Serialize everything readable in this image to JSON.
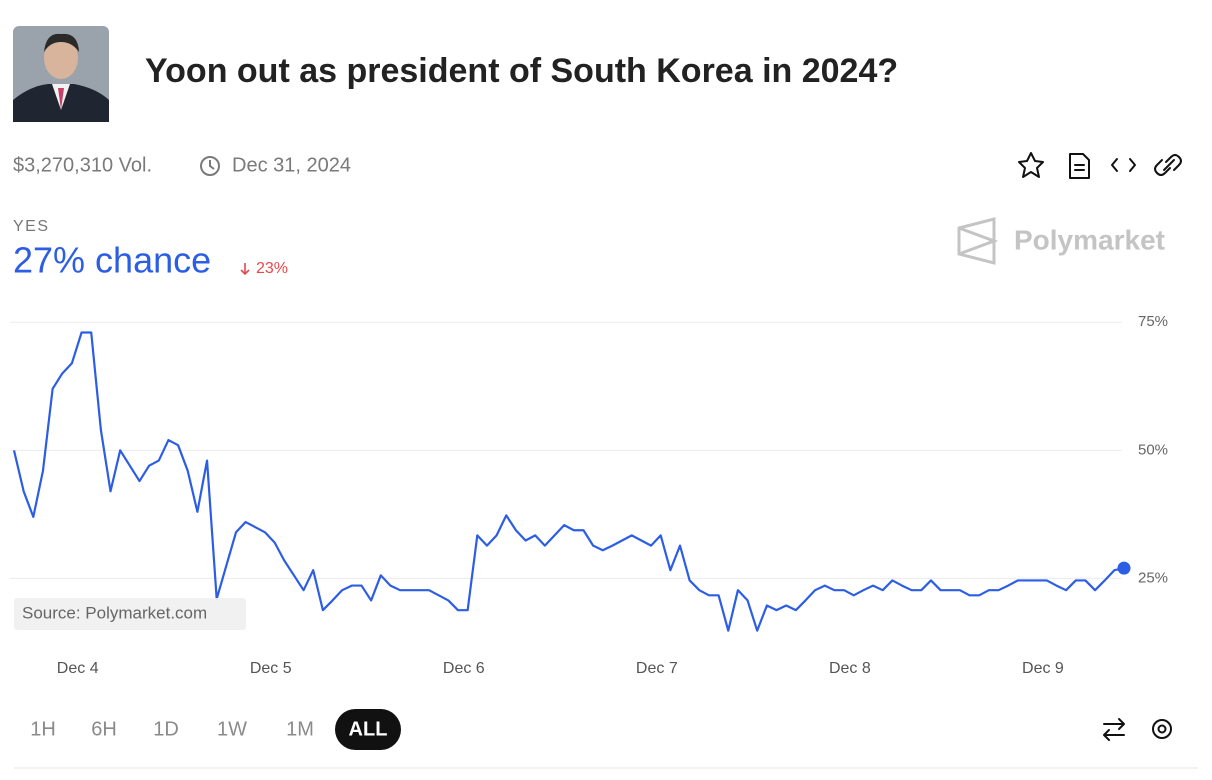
{
  "header": {
    "title": "Yoon out as president of South Korea in 2024?",
    "volume": "$3,270,310 Vol.",
    "end_date": "Dec 31, 2024"
  },
  "outcome": {
    "label": "YES",
    "chance": "27% chance",
    "change": "23%"
  },
  "brand": "Polymarket",
  "source": "Source: Polymarket.com",
  "timeframes": [
    "1H",
    "6H",
    "1D",
    "1W",
    "1M",
    "ALL"
  ],
  "active_timeframe": 5,
  "chart_data": {
    "type": "line",
    "color": "#2c5de5",
    "grid": true,
    "xlim": [
      0,
      115
    ],
    "ylim": [
      12,
      77
    ],
    "xticks": [
      {
        "value": 6.6,
        "label": "Dec 4"
      },
      {
        "value": 26.6,
        "label": "Dec 5"
      },
      {
        "value": 46.6,
        "label": "Dec 6"
      },
      {
        "value": 66.6,
        "label": "Dec 7"
      },
      {
        "value": 86.6,
        "label": "Dec 8"
      },
      {
        "value": 106.6,
        "label": "Dec 9"
      }
    ],
    "yticks": [
      {
        "value": 25,
        "label": "25%"
      },
      {
        "value": 50,
        "label": "50%"
      },
      {
        "value": 75,
        "label": "75%"
      }
    ],
    "values": [
      50,
      42,
      37,
      46,
      62,
      65,
      67,
      73,
      73,
      54,
      42,
      50,
      47,
      44,
      47,
      48,
      52,
      51,
      46,
      38,
      48,
      21,
      27.5,
      34,
      36,
      35,
      34,
      32,
      28.5,
      25.6,
      22.7,
      26.6,
      18.8,
      20.7,
      22.7,
      23.6,
      23.6,
      20.7,
      25.6,
      23.6,
      22.7,
      22.7,
      22.7,
      22.7,
      21.7,
      20.7,
      18.8,
      18.8,
      33.4,
      31.4,
      33.4,
      37.3,
      34.4,
      32.4,
      33.4,
      31.4,
      33.4,
      35.4,
      34.4,
      34.4,
      31.4,
      30.5,
      31.4,
      32.4,
      33.4,
      32.4,
      31.4,
      33.4,
      26.6,
      31.4,
      24.6,
      22.7,
      21.7,
      21.7,
      14.8,
      22.7,
      20.7,
      14.8,
      19.7,
      18.8,
      19.7,
      18.8,
      20.7,
      22.7,
      23.6,
      22.7,
      22.7,
      21.7,
      22.7,
      23.6,
      22.7,
      24.6,
      23.6,
      22.7,
      22.7,
      24.6,
      22.7,
      22.7,
      22.7,
      21.7,
      21.7,
      22.7,
      22.7,
      23.6,
      24.6,
      24.6,
      24.6,
      24.6,
      23.6,
      22.7,
      24.6,
      24.6,
      22.7,
      24.6,
      26.6,
      27
    ]
  }
}
